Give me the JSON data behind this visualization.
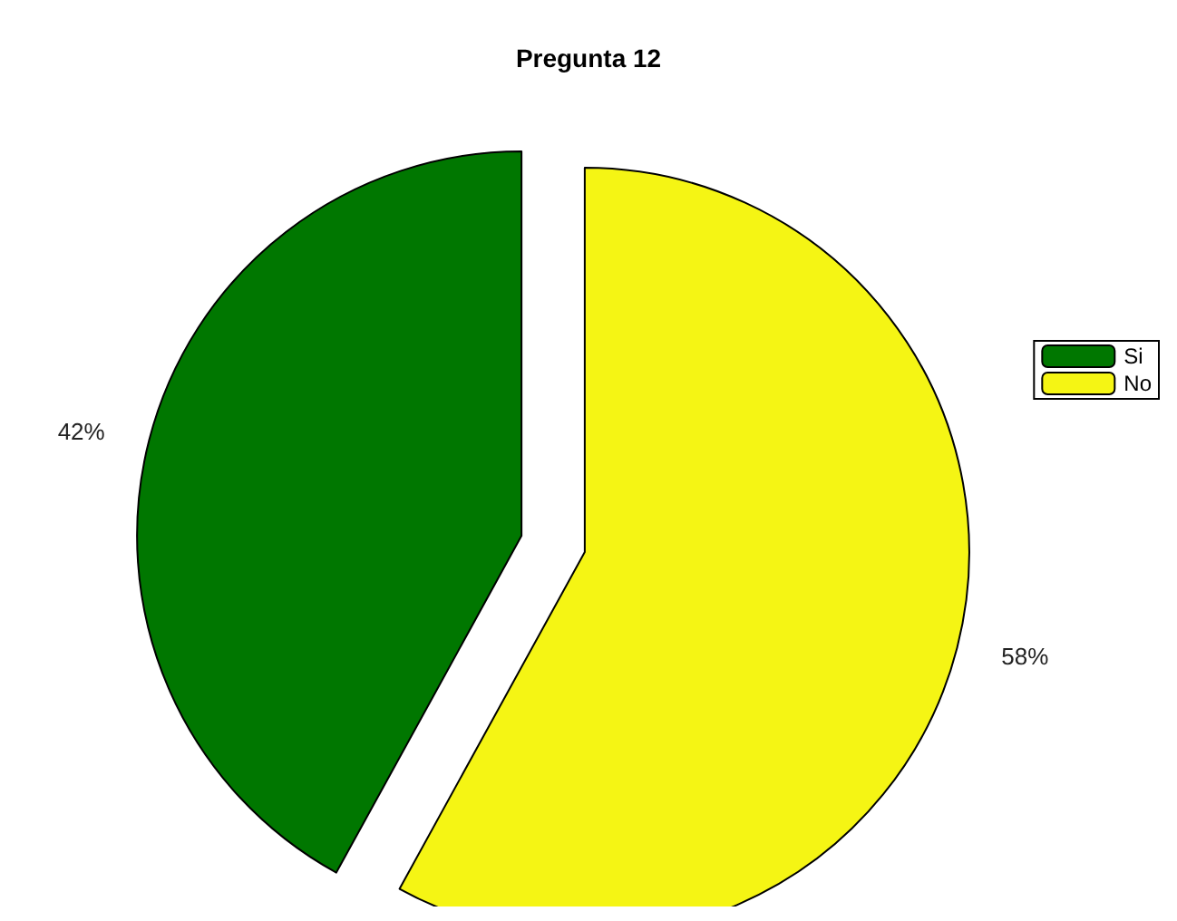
{
  "chart_data": {
    "type": "pie",
    "title": "Pregunta 12",
    "categories": [
      "Si",
      "No"
    ],
    "values": [
      42,
      58
    ],
    "colors": [
      "#007700",
      "#f5f514"
    ],
    "value_labels": [
      "42%",
      "58%"
    ],
    "legend": "right"
  }
}
